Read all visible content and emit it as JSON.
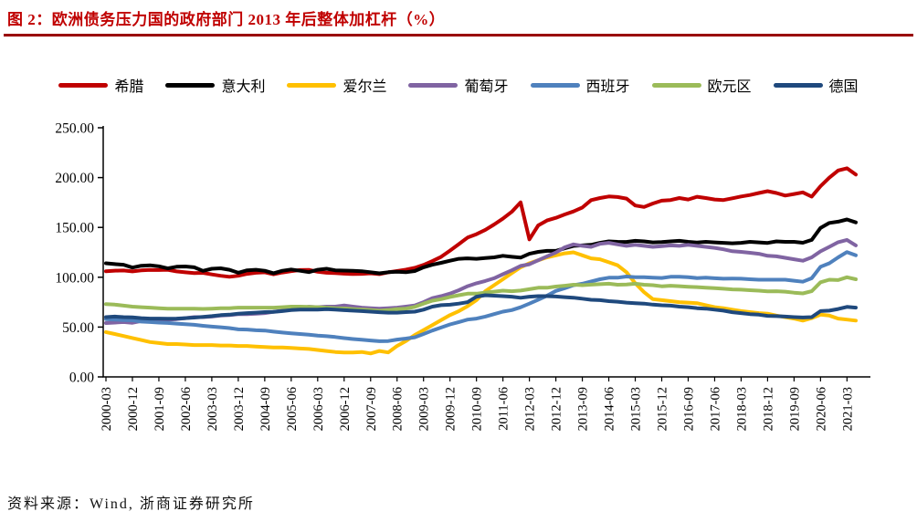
{
  "chart_data": {
    "type": "line",
    "title": "图 2：欧洲债务压力国的政府部门 2013 年后整体加杠杆（%）",
    "unit": "%",
    "grid": false,
    "legend_position": "top",
    "ylim": [
      0,
      250
    ],
    "ytick_step": 50,
    "ytick_labels": [
      "0.00",
      "50.00",
      "100.00",
      "150.00",
      "200.00",
      "250.00"
    ],
    "xtick_every": 3,
    "x": [
      "2000-03",
      "2000-06",
      "2000-09",
      "2000-12",
      "2001-03",
      "2001-06",
      "2001-09",
      "2001-12",
      "2002-03",
      "2002-06",
      "2002-09",
      "2002-12",
      "2003-03",
      "2003-06",
      "2003-09",
      "2003-12",
      "2004-03",
      "2004-06",
      "2004-09",
      "2004-12",
      "2005-03",
      "2005-06",
      "2005-09",
      "2005-12",
      "2006-03",
      "2006-06",
      "2006-09",
      "2006-12",
      "2007-03",
      "2007-06",
      "2007-09",
      "2007-12",
      "2008-03",
      "2008-06",
      "2008-09",
      "2008-12",
      "2009-03",
      "2009-06",
      "2009-09",
      "2009-12",
      "2010-03",
      "2010-06",
      "2010-09",
      "2010-12",
      "2011-03",
      "2011-06",
      "2011-09",
      "2011-12",
      "2012-03",
      "2012-06",
      "2012-09",
      "2012-12",
      "2013-03",
      "2013-06",
      "2013-09",
      "2013-12",
      "2014-03",
      "2014-06",
      "2014-09",
      "2014-12",
      "2015-03",
      "2015-06",
      "2015-09",
      "2015-12",
      "2016-03",
      "2016-06",
      "2016-09",
      "2016-12",
      "2017-03",
      "2017-06",
      "2017-09",
      "2017-12",
      "2018-03",
      "2018-06",
      "2018-09",
      "2018-12",
      "2019-03",
      "2019-06",
      "2019-09",
      "2019-12",
      "2020-03",
      "2020-06",
      "2020-09",
      "2020-12",
      "2021-03",
      "2021-06"
    ],
    "series": [
      {
        "name": "希腊",
        "color": "#C00000",
        "values": [
          106.0,
          106.6,
          106.8,
          105.9,
          106.9,
          107.4,
          107.2,
          107.5,
          105.9,
          104.9,
          104.1,
          104.4,
          102.8,
          101.5,
          100.5,
          101.5,
          103.4,
          104.5,
          104.9,
          102.9,
          104.8,
          106.1,
          107.2,
          107.4,
          105.5,
          104.5,
          104.2,
          103.6,
          103.2,
          103.4,
          103.9,
          103.1,
          104.9,
          106.2,
          107.6,
          109.4,
          112.4,
          116.2,
          120.5,
          126.7,
          133.2,
          139.8,
          143.2,
          147.5,
          152.9,
          158.8,
          165.7,
          175.2,
          138.0,
          152.0,
          157.0,
          159.6,
          163.0,
          166.0,
          170.0,
          177.4,
          179.5,
          181.0,
          180.5,
          178.9,
          172.0,
          170.5,
          174.0,
          176.8,
          177.5,
          179.5,
          178.0,
          180.8,
          179.5,
          178.0,
          177.5,
          179.2,
          181.0,
          182.5,
          184.5,
          186.4,
          184.5,
          182.0,
          183.5,
          185.2,
          180.9,
          191.4,
          199.9,
          207.1,
          209.3,
          203.0
        ]
      },
      {
        "name": "意大利",
        "color": "#000000",
        "values": [
          114.0,
          113.2,
          112.5,
          109.7,
          111.5,
          112.0,
          111.0,
          108.9,
          110.5,
          110.8,
          110.0,
          106.4,
          108.5,
          109.0,
          107.5,
          104.5,
          107.0,
          107.5,
          106.5,
          104.0,
          106.5,
          107.8,
          106.5,
          105.1,
          107.5,
          108.5,
          107.0,
          106.7,
          106.5,
          106.0,
          105.0,
          103.9,
          105.0,
          105.5,
          105.0,
          106.2,
          110.0,
          112.5,
          114.5,
          116.6,
          118.5,
          119.0,
          118.5,
          119.2,
          120.0,
          121.5,
          120.5,
          119.7,
          123.5,
          125.5,
          126.5,
          126.5,
          129.0,
          131.5,
          132.0,
          132.5,
          134.5,
          136.0,
          135.5,
          135.4,
          136.5,
          136.0,
          135.0,
          135.3,
          136.0,
          136.5,
          135.5,
          134.8,
          135.5,
          135.0,
          134.5,
          134.1,
          134.5,
          135.5,
          135.0,
          134.4,
          136.0,
          135.5,
          135.5,
          134.6,
          137.5,
          149.5,
          154.5,
          155.8,
          158.0,
          155.0
        ]
      },
      {
        "name": "爱尔兰",
        "color": "#FFC000",
        "values": [
          45.0,
          43.0,
          41.0,
          39.0,
          37.0,
          35.0,
          34.0,
          33.0,
          33.0,
          32.5,
          32.0,
          32.0,
          32.0,
          31.5,
          31.5,
          31.0,
          31.0,
          30.5,
          30.0,
          29.5,
          29.5,
          29.0,
          28.5,
          28.0,
          27.0,
          26.0,
          25.0,
          24.5,
          24.5,
          25.0,
          23.5,
          26.0,
          24.5,
          31.0,
          36.0,
          42.0,
          47.0,
          52.0,
          57.0,
          62.0,
          66.0,
          71.0,
          77.0,
          86.0,
          92.0,
          98.0,
          104.0,
          110.0,
          114.0,
          117.0,
          120.0,
          122.0,
          124.0,
          125.0,
          122.0,
          119.0,
          118.0,
          115.0,
          112.0,
          105.0,
          94.0,
          85.0,
          78.0,
          77.0,
          76.0,
          75.0,
          74.5,
          74.0,
          72.0,
          70.0,
          69.0,
          67.5,
          66.0,
          65.0,
          64.0,
          63.5,
          61.5,
          60.0,
          58.5,
          56.5,
          59.0,
          62.5,
          61.5,
          58.5,
          57.5,
          56.5
        ]
      },
      {
        "name": "葡萄牙",
        "color": "#8064A2",
        "values": [
          54.0,
          54.5,
          55.0,
          54.3,
          56.0,
          57.0,
          57.5,
          57.4,
          58.0,
          59.0,
          60.0,
          60.0,
          60.5,
          61.5,
          62.0,
          62.9,
          63.0,
          63.5,
          64.0,
          65.3,
          66.5,
          68.0,
          69.0,
          70.4,
          70.0,
          70.5,
          70.5,
          71.7,
          70.5,
          69.5,
          69.0,
          68.4,
          69.0,
          69.5,
          70.5,
          71.7,
          75.0,
          79.0,
          81.0,
          83.6,
          87.0,
          91.0,
          94.0,
          96.2,
          99.0,
          103.0,
          107.0,
          111.4,
          113.0,
          117.0,
          121.0,
          124.8,
          130.0,
          133.0,
          131.5,
          130.5,
          133.5,
          134.5,
          133.0,
          131.5,
          132.5,
          131.5,
          130.5,
          131.2,
          132.0,
          131.5,
          132.5,
          131.5,
          130.5,
          129.5,
          128.0,
          126.1,
          125.5,
          124.5,
          123.5,
          121.5,
          121.0,
          119.5,
          118.0,
          116.6,
          120.0,
          126.0,
          130.5,
          135.2,
          137.5,
          132.0
        ]
      },
      {
        "name": "西班牙",
        "color": "#4F81BD",
        "values": [
          58.0,
          57.5,
          57.0,
          56.8,
          55.5,
          55.0,
          54.5,
          54.1,
          53.5,
          52.8,
          52.3,
          51.3,
          50.5,
          49.8,
          49.0,
          47.7,
          47.5,
          46.8,
          46.5,
          45.4,
          44.5,
          43.8,
          43.0,
          42.4,
          41.5,
          40.8,
          40.0,
          38.9,
          38.0,
          37.3,
          36.5,
          35.8,
          36.0,
          37.5,
          38.5,
          39.7,
          43.0,
          46.5,
          49.5,
          52.7,
          55.0,
          57.5,
          58.5,
          60.5,
          63.0,
          65.5,
          67.0,
          69.9,
          73.5,
          77.5,
          81.5,
          86.3,
          89.0,
          92.0,
          93.5,
          95.8,
          98.0,
          99.5,
          99.5,
          100.7,
          100.0,
          100.0,
          99.5,
          99.3,
          100.5,
          100.5,
          100.0,
          99.2,
          99.5,
          99.0,
          98.5,
          98.6,
          98.5,
          98.0,
          97.5,
          97.5,
          97.5,
          97.5,
          96.5,
          95.5,
          99.0,
          110.5,
          114.0,
          120.0,
          125.3,
          122.0
        ]
      },
      {
        "name": "欧元区",
        "color": "#9BBB59",
        "values": [
          73.0,
          72.5,
          71.5,
          70.5,
          70.0,
          69.5,
          69.0,
          68.5,
          68.5,
          68.5,
          68.5,
          68.2,
          68.5,
          69.0,
          69.0,
          69.5,
          69.5,
          69.5,
          69.5,
          69.5,
          70.0,
          70.5,
          70.5,
          70.3,
          70.0,
          69.5,
          69.0,
          68.7,
          68.0,
          67.5,
          67.0,
          66.4,
          67.0,
          68.0,
          68.5,
          70.2,
          73.5,
          76.5,
          78.0,
          80.2,
          82.0,
          83.5,
          83.5,
          84.6,
          85.5,
          86.5,
          86.0,
          86.6,
          88.0,
          89.5,
          89.5,
          90.7,
          91.5,
          92.5,
          92.0,
          92.6,
          93.0,
          93.5,
          92.5,
          92.8,
          93.5,
          92.5,
          92.0,
          90.9,
          91.5,
          91.0,
          90.5,
          90.1,
          89.5,
          89.0,
          88.5,
          87.8,
          87.5,
          87.0,
          86.5,
          85.8,
          86.0,
          85.5,
          84.5,
          83.8,
          86.0,
          95.0,
          97.5,
          97.2,
          100.0,
          98.0
        ]
      },
      {
        "name": "德国",
        "color": "#1F497D",
        "values": [
          60.0,
          60.5,
          60.0,
          59.7,
          59.0,
          58.5,
          58.5,
          58.3,
          58.5,
          59.0,
          59.5,
          60.3,
          61.0,
          62.0,
          62.5,
          63.5,
          64.0,
          64.5,
          65.0,
          65.2,
          66.0,
          67.0,
          67.5,
          67.5,
          67.5,
          68.0,
          67.5,
          66.9,
          66.5,
          66.0,
          65.5,
          64.9,
          64.5,
          64.5,
          65.0,
          65.5,
          67.5,
          70.5,
          72.0,
          72.4,
          73.5,
          75.0,
          80.5,
          82.0,
          81.5,
          81.0,
          80.5,
          79.4,
          80.5,
          81.0,
          81.0,
          80.7,
          80.0,
          79.5,
          78.5,
          77.4,
          77.0,
          76.0,
          75.5,
          74.5,
          74.0,
          73.5,
          72.5,
          71.9,
          71.5,
          70.5,
          70.0,
          69.0,
          68.5,
          67.5,
          66.5,
          64.9,
          64.0,
          63.0,
          62.5,
          61.3,
          61.0,
          60.5,
          60.0,
          59.6,
          60.0,
          66.0,
          66.5,
          68.1,
          70.2,
          69.5
        ]
      }
    ]
  },
  "source": {
    "text": "资料来源：Wind, 浙商证券研究所"
  },
  "colors": {
    "title_red": "#C00000",
    "rule_red": "#990000",
    "axis": "#000000",
    "tick_label": "#000000"
  }
}
